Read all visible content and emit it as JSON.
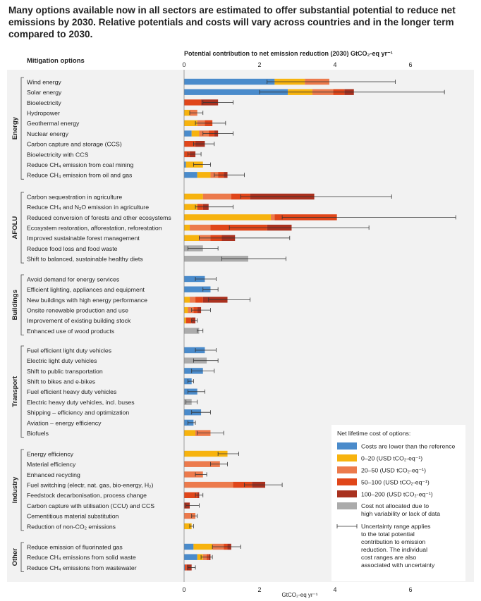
{
  "headline": "Many options available now in all sectors are estimated to offer substantial potential to reduce net emissions by 2030. Relative potentials and costs will vary across countries and in the longer term compared to 2030.",
  "chart_data": {
    "type": "bar",
    "orientation": "horizontal",
    "stacked": true,
    "column_header": "Mitigation options",
    "title": "Potential contribution to net emission reduction (2030) GtCO₂-eq yr⁻¹",
    "xlabel": "GtCO₂-eq yr⁻¹",
    "xlim": [
      0,
      7
    ],
    "xticks": [
      0,
      2,
      4,
      6
    ],
    "grid": false,
    "legend": {
      "title": "Net lifetime cost of options:",
      "placement": "bottom-right",
      "items": [
        {
          "key": "lower",
          "label": "Costs are lower than the reference",
          "color": "#4a8bcb"
        },
        {
          "key": "c0_20",
          "label": "0–20 (USD tCO₂-eq⁻¹)",
          "color": "#f7b30e"
        },
        {
          "key": "c20_50",
          "label": "20–50 (USD tCO₂-eq⁻¹)",
          "color": "#ec7a4c"
        },
        {
          "key": "c50_100",
          "label": "50–100 (USD tCO₂-eq⁻¹)",
          "color": "#e0461a"
        },
        {
          "key": "c100_200",
          "label": "100–200 (USD tCO₂-eq⁻¹)",
          "color": "#a9311f"
        },
        {
          "key": "na",
          "label": "Cost not allocated due to high variability or lack of data",
          "color": "#ababab"
        }
      ],
      "uncertainty_note": "Uncertainty range applies to the total potential contribution to emission reduction. The individual cost ranges are also associated with uncertainty"
    },
    "sectors": [
      {
        "name": "Energy",
        "options": [
          {
            "label": "Wind energy",
            "segments": [
              [
                "lower",
                2.4
              ],
              [
                "c0_20",
                0.8
              ],
              [
                "c20_50",
                0.65
              ]
            ],
            "range": [
              2.2,
              5.6
            ]
          },
          {
            "label": "Solar energy",
            "segments": [
              [
                "lower",
                2.75
              ],
              [
                "c0_20",
                0.65
              ],
              [
                "c20_50",
                0.55
              ],
              [
                "c50_100",
                0.3
              ],
              [
                "c100_200",
                0.25
              ]
            ],
            "range": [
              2.0,
              6.9
            ]
          },
          {
            "label": "Bioelectricity",
            "segments": [
              [
                "c50_100",
                0.45
              ],
              [
                "c100_200",
                0.45
              ]
            ],
            "range": [
              0.5,
              1.3
            ]
          },
          {
            "label": "Hydropower",
            "segments": [
              [
                "c0_20",
                0.15
              ],
              [
                "c20_50",
                0.2
              ]
            ],
            "range": [
              0.15,
              0.5
            ]
          },
          {
            "label": "Geothermal energy",
            "segments": [
              [
                "c0_20",
                0.35
              ],
              [
                "c20_50",
                0.2
              ],
              [
                "c50_100",
                0.2
              ]
            ],
            "range": [
              0.3,
              1.1
            ]
          },
          {
            "label": "Nuclear energy",
            "segments": [
              [
                "lower",
                0.2
              ],
              [
                "c0_20",
                0.2
              ],
              [
                "c20_50",
                0.25
              ],
              [
                "c50_100",
                0.15
              ],
              [
                "c100_200",
                0.1
              ]
            ],
            "range": [
              0.5,
              1.3
            ]
          },
          {
            "label": "Carbon capture and storage (CCS)",
            "segments": [
              [
                "c50_100",
                0.3
              ],
              [
                "c100_200",
                0.25
              ]
            ],
            "range": [
              0.25,
              0.8
            ]
          },
          {
            "label": "Bioelectricity with CCS",
            "segments": [
              [
                "c50_100",
                0.15
              ],
              [
                "c100_200",
                0.15
              ]
            ],
            "range": [
              0.1,
              0.45
            ]
          },
          {
            "label": "Reduce CH₄ emission from coal mining",
            "segments": [
              [
                "lower",
                0.05
              ],
              [
                "c0_20",
                0.45
              ]
            ],
            "range": [
              0.25,
              0.7
            ]
          },
          {
            "label": "Reduce CH₄ emission from oil and gas",
            "segments": [
              [
                "lower",
                0.35
              ],
              [
                "c0_20",
                0.35
              ],
              [
                "c20_50",
                0.2
              ],
              [
                "c50_100",
                0.15
              ],
              [
                "c100_200",
                0.1
              ]
            ],
            "range": [
              0.8,
              1.6
            ]
          }
        ]
      },
      {
        "name": "AFOLU",
        "options": [
          {
            "label": "Carbon sequestration in agriculture",
            "segments": [
              [
                "c0_20",
                0.5
              ],
              [
                "c20_50",
                0.75
              ],
              [
                "c50_100",
                0.5
              ],
              [
                "c100_200",
                1.7
              ]
            ],
            "range": [
              1.5,
              5.5
            ]
          },
          {
            "label": "Reduce CH₄ and N₂O emission in agriculture",
            "segments": [
              [
                "c0_20",
                0.35
              ],
              [
                "c50_100",
                0.15
              ],
              [
                "c100_200",
                0.15
              ]
            ],
            "range": [
              0.3,
              1.3
            ]
          },
          {
            "label": "Reduced conversion of forests and other ecosystems",
            "segments": [
              [
                "c0_20",
                2.3
              ],
              [
                "c20_50",
                0.1
              ],
              [
                "c50_100",
                1.65
              ]
            ],
            "range": [
              2.6,
              7.2
            ]
          },
          {
            "label": "Ecosystem restoration, afforestation, reforestation",
            "segments": [
              [
                "c0_20",
                0.15
              ],
              [
                "c20_50",
                0.55
              ],
              [
                "c50_100",
                1.5
              ],
              [
                "c100_200",
                0.65
              ]
            ],
            "range": [
              1.2,
              4.9
            ]
          },
          {
            "label": "Improved sustainable forest management",
            "segments": [
              [
                "c0_20",
                0.4
              ],
              [
                "c20_50",
                0.3
              ],
              [
                "c50_100",
                0.3
              ],
              [
                "c100_200",
                0.35
              ]
            ],
            "range": [
              0.4,
              2.8
            ]
          },
          {
            "label": "Reduce food loss and food waste",
            "segments": [
              [
                "na",
                0.5
              ]
            ],
            "range": [
              0.1,
              0.9
            ]
          },
          {
            "label": "Shift to balanced, sustainable healthy diets",
            "segments": [
              [
                "na",
                1.7
              ]
            ],
            "range": [
              1.0,
              2.7
            ]
          }
        ]
      },
      {
        "name": "Buildings",
        "options": [
          {
            "label": "Avoid demand for energy services",
            "segments": [
              [
                "lower",
                0.55
              ]
            ],
            "range": [
              0.3,
              0.85
            ]
          },
          {
            "label": "Efficient lighting, appliances and equipment",
            "segments": [
              [
                "lower",
                0.7
              ]
            ],
            "range": [
              0.5,
              0.9
            ]
          },
          {
            "label": "New buildings with high energy performance",
            "segments": [
              [
                "c0_20",
                0.15
              ],
              [
                "c20_50",
                0.15
              ],
              [
                "c50_100",
                0.2
              ],
              [
                "c100_200",
                0.65
              ]
            ],
            "range": [
              0.65,
              1.75
            ]
          },
          {
            "label": "Onsite renewable production and use",
            "segments": [
              [
                "c0_20",
                0.1
              ],
              [
                "c20_50",
                0.15
              ],
              [
                "c50_100",
                0.1
              ],
              [
                "c100_200",
                0.1
              ]
            ],
            "range": [
              0.2,
              0.7
            ]
          },
          {
            "label": "Improvement of existing building stock",
            "segments": [
              [
                "c0_20",
                0.05
              ],
              [
                "c50_100",
                0.15
              ],
              [
                "c100_200",
                0.1
              ]
            ],
            "range": [
              0.2,
              0.35
            ]
          },
          {
            "label": "Enhanced use of wood products",
            "segments": [
              [
                "na",
                0.4
              ]
            ],
            "range": [
              0.35,
              0.5
            ]
          }
        ]
      },
      {
        "name": "Transport",
        "options": [
          {
            "label": "Fuel efficient light duty vehicles",
            "segments": [
              [
                "lower",
                0.55
              ]
            ],
            "range": [
              0.3,
              0.85
            ]
          },
          {
            "label": "Electric light duty vehicles",
            "segments": [
              [
                "na",
                0.6
              ]
            ],
            "range": [
              0.25,
              0.9
            ]
          },
          {
            "label": "Shift to public transportation",
            "segments": [
              [
                "lower",
                0.5
              ]
            ],
            "range": [
              0.2,
              0.8
            ]
          },
          {
            "label": "Shift to bikes and e-bikes",
            "segments": [
              [
                "lower",
                0.2
              ]
            ],
            "range": [
              0.1,
              0.25
            ]
          },
          {
            "label": "Fuel efficient heavy duty vehicles",
            "segments": [
              [
                "lower",
                0.35
              ]
            ],
            "range": [
              0.1,
              0.55
            ]
          },
          {
            "label": "Electric heavy duty vehicles, incl. buses",
            "segments": [
              [
                "na",
                0.2
              ]
            ],
            "range": [
              0.05,
              0.35
            ]
          },
          {
            "label": "Shipping – efficiency and optimization",
            "segments": [
              [
                "lower",
                0.45
              ]
            ],
            "range": [
              0.2,
              0.7
            ]
          },
          {
            "label": "Aviation – energy efficiency",
            "segments": [
              [
                "lower",
                0.25
              ]
            ],
            "range": [
              0.1,
              0.3
            ]
          },
          {
            "label": "Biofuels",
            "segments": [
              [
                "c0_20",
                0.3
              ],
              [
                "c20_50",
                0.4
              ]
            ],
            "range": [
              0.35,
              1.05
            ]
          }
        ]
      },
      {
        "name": "Industry",
        "options": [
          {
            "label": "Energy efficiency",
            "segments": [
              [
                "c0_20",
                1.15
              ]
            ],
            "range": [
              0.9,
              1.45
            ]
          },
          {
            "label": "Material efficiency",
            "segments": [
              [
                "c20_50",
                0.95
              ]
            ],
            "range": [
              0.7,
              1.15
            ]
          },
          {
            "label": "Enhanced recycling",
            "segments": [
              [
                "c20_50",
                0.5
              ]
            ],
            "range": [
              0.3,
              0.6
            ]
          },
          {
            "label": "Fuel switching (electr, nat. gas, bio-energy, H₂)",
            "segments": [
              [
                "c20_50",
                1.3
              ],
              [
                "c50_100",
                0.5
              ],
              [
                "c100_200",
                0.35
              ]
            ],
            "range": [
              1.6,
              2.6
            ]
          },
          {
            "label": "Feedstock decarbonisation, process change",
            "segments": [
              [
                "c50_100",
                0.35
              ],
              [
                "c100_200",
                0.05
              ]
            ],
            "range": [
              0.3,
              0.5
            ]
          },
          {
            "label": "Carbon capture with utilisation (CCU) and CCS",
            "segments": [
              [
                "c100_200",
                0.15
              ]
            ],
            "range": [
              0.05,
              0.4
            ]
          },
          {
            "label": "Cementitious material substitution",
            "segments": [
              [
                "c20_50",
                0.3
              ]
            ],
            "range": [
              0.2,
              0.35
            ]
          },
          {
            "label": "Reduction of non-CO₂ emissions",
            "segments": [
              [
                "c0_20",
                0.2
              ]
            ],
            "range": [
              0.15,
              0.25
            ]
          }
        ]
      },
      {
        "name": "Other",
        "options": [
          {
            "label": "Reduce emission of fluorinated gas",
            "segments": [
              [
                "lower",
                0.25
              ],
              [
                "c0_20",
                0.5
              ],
              [
                "c20_50",
                0.3
              ],
              [
                "c50_100",
                0.1
              ],
              [
                "c100_200",
                0.1
              ]
            ],
            "range": [
              0.75,
              1.5
            ]
          },
          {
            "label": "Reduce CH₄ emissions from solid waste",
            "segments": [
              [
                "lower",
                0.35
              ],
              [
                "c0_20",
                0.15
              ],
              [
                "c20_50",
                0.1
              ],
              [
                "c50_100",
                0.05
              ],
              [
                "c100_200",
                0.05
              ]
            ],
            "range": [
              0.45,
              0.75
            ]
          },
          {
            "label": "Reduce CH₄ emissions from wastewater",
            "segments": [
              [
                "lower",
                0.02
              ],
              [
                "c50_100",
                0.05
              ],
              [
                "c100_200",
                0.13
              ]
            ],
            "range": [
              0.1,
              0.3
            ]
          }
        ]
      }
    ]
  }
}
